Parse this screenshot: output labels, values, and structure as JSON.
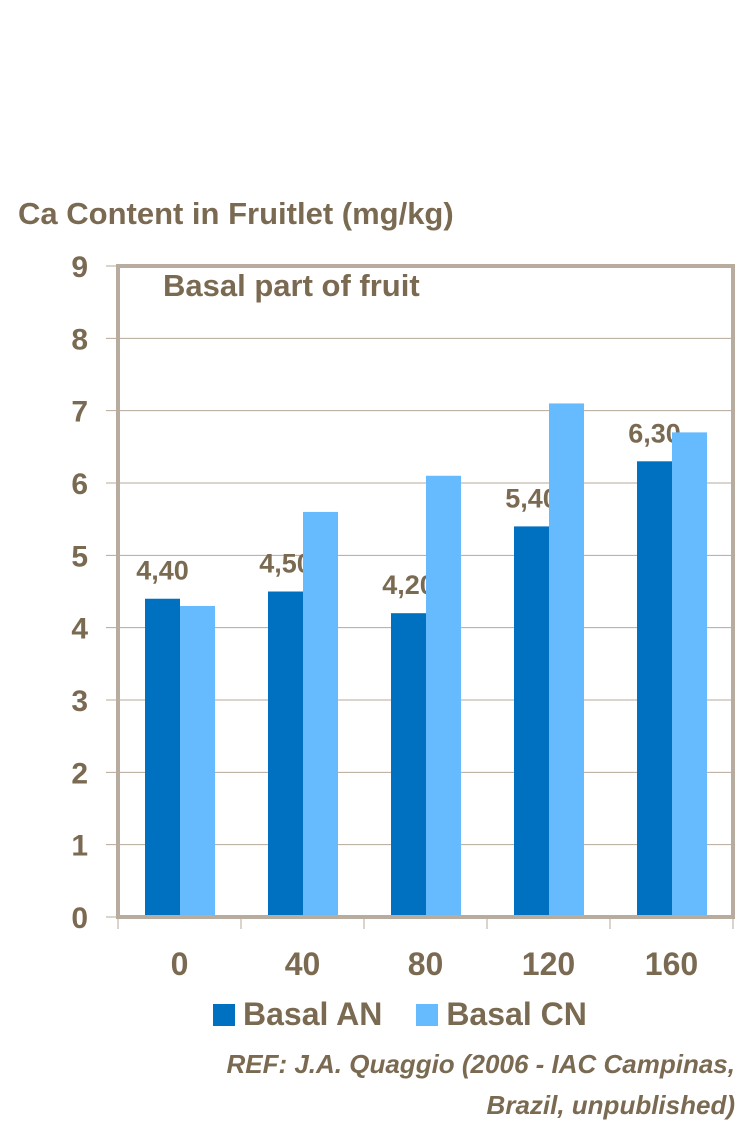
{
  "chart_data": {
    "type": "bar",
    "ylabel": "Ca Content in Fruitlet (mg/kg)",
    "title": "Basal part of fruit",
    "categories": [
      "0",
      "40",
      "80",
      "120",
      "160"
    ],
    "series": [
      {
        "name": "Basal AN",
        "color": "#0070c0",
        "values": [
          4.4,
          4.5,
          4.2,
          5.4,
          6.3
        ],
        "data_labels": [
          "4,40",
          "4,50",
          "4,20",
          "5,40",
          "6,30"
        ]
      },
      {
        "name": "Basal CN",
        "color": "#66bbff",
        "values": [
          4.3,
          5.6,
          6.1,
          7.1,
          6.7
        ]
      }
    ],
    "ylim": [
      0,
      9
    ],
    "yticks": [
      "0",
      "1",
      "2",
      "3",
      "4",
      "5",
      "6",
      "7",
      "8",
      "9"
    ],
    "grid": true,
    "legend": "bottom"
  },
  "reference": {
    "line1": "REF: J.A. Quaggio (2006 - IAC Campinas,",
    "line2": "Brazil, unpublished)"
  }
}
